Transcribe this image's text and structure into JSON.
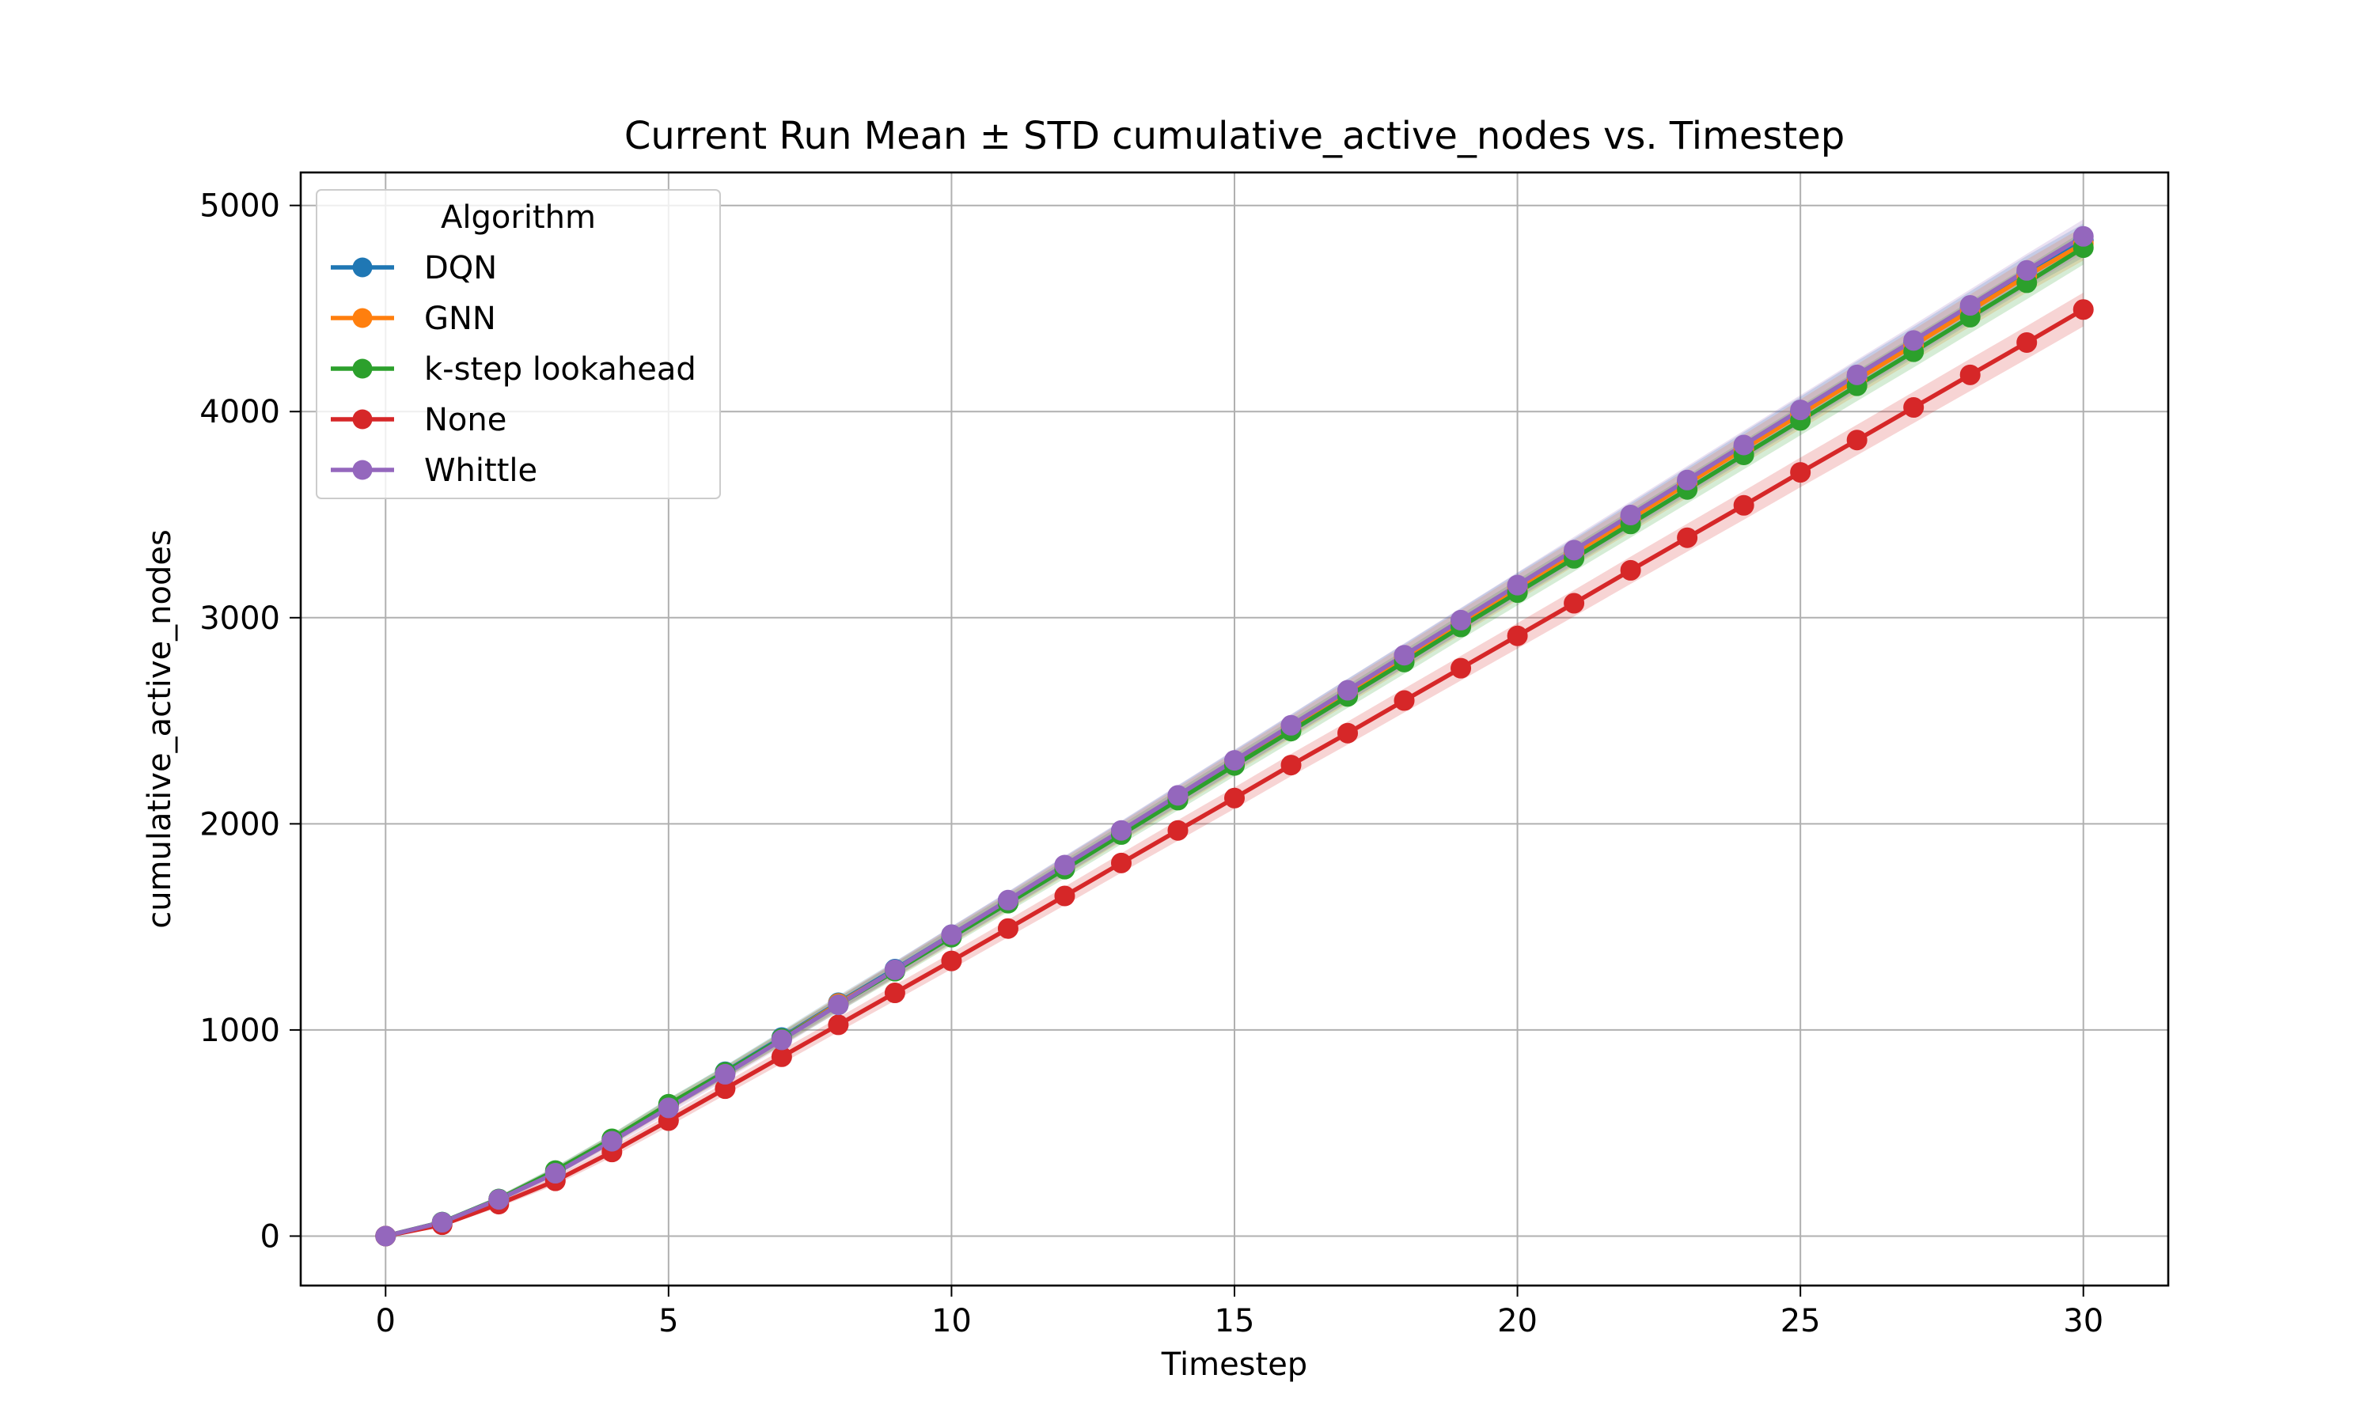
{
  "chart_data": {
    "type": "line",
    "title": "Current Run Mean ± STD cumulative_active_nodes vs. Timestep",
    "xlabel": "Timestep",
    "ylabel": "cumulative_active_nodes",
    "xlim": [
      -1.5,
      31.5
    ],
    "ylim": [
      -240,
      5160
    ],
    "xticks": [
      0,
      5,
      10,
      15,
      20,
      25,
      30
    ],
    "yticks": [
      0,
      1000,
      2000,
      3000,
      4000,
      5000
    ],
    "grid": true,
    "legend": {
      "title": "Algorithm",
      "placement": "top-left"
    },
    "x": [
      0,
      1,
      2,
      3,
      4,
      5,
      6,
      7,
      8,
      9,
      10,
      11,
      12,
      13,
      14,
      15,
      16,
      17,
      18,
      19,
      20,
      21,
      22,
      23,
      24,
      25,
      26,
      27,
      28,
      29,
      30
    ],
    "series": [
      {
        "name": "DQN",
        "color": "#1f77b4",
        "values": [
          0,
          68,
          180,
          315,
          470,
          638,
          797,
          963,
          1132,
          1295,
          1462,
          1628,
          1797,
          1965,
          2135,
          2305,
          2475,
          2647,
          2815,
          2985,
          3155,
          3320,
          3490,
          3660,
          3830,
          4000,
          4170,
          4335,
          4505,
          4675,
          4830
        ],
        "std": [
          0,
          10,
          15,
          20,
          25,
          28,
          30,
          33,
          35,
          38,
          40,
          42,
          45,
          47,
          50,
          52,
          54,
          56,
          58,
          60,
          62,
          64,
          66,
          68,
          70,
          72,
          74,
          76,
          78,
          80,
          82
        ]
      },
      {
        "name": "GNN",
        "color": "#ff7f0e",
        "values": [
          0,
          67,
          179,
          312,
          467,
          634,
          792,
          958,
          1128,
          1290,
          1457,
          1622,
          1792,
          1960,
          2128,
          2298,
          2468,
          2638,
          2807,
          2977,
          3146,
          3313,
          3480,
          3650,
          3818,
          3987,
          4155,
          4322,
          4490,
          4658,
          4815
        ],
        "std": [
          0,
          10,
          15,
          20,
          25,
          28,
          30,
          33,
          35,
          38,
          40,
          42,
          45,
          47,
          50,
          52,
          54,
          56,
          58,
          60,
          62,
          64,
          66,
          68,
          70,
          72,
          74,
          76,
          78,
          80,
          82
        ]
      },
      {
        "name": "k-step lookahead",
        "color": "#2ca02c",
        "values": [
          0,
          68,
          180,
          318,
          472,
          640,
          795,
          958,
          1122,
          1285,
          1450,
          1615,
          1780,
          1948,
          2115,
          2283,
          2450,
          2618,
          2785,
          2955,
          3122,
          3288,
          3455,
          3622,
          3790,
          3957,
          4125,
          4290,
          4458,
          4625,
          4795
        ],
        "std": [
          0,
          10,
          15,
          20,
          25,
          28,
          30,
          33,
          35,
          38,
          40,
          42,
          45,
          47,
          50,
          52,
          54,
          56,
          58,
          60,
          62,
          64,
          66,
          68,
          70,
          72,
          74,
          76,
          78,
          80,
          82
        ]
      },
      {
        "name": "None",
        "color": "#d62728",
        "values": [
          0,
          55,
          155,
          268,
          408,
          560,
          715,
          870,
          1025,
          1180,
          1335,
          1492,
          1650,
          1810,
          1968,
          2125,
          2285,
          2440,
          2598,
          2755,
          2912,
          3070,
          3230,
          3388,
          3545,
          3705,
          3862,
          4020,
          4178,
          4335,
          4495
        ],
        "std": [
          0,
          10,
          15,
          20,
          25,
          28,
          30,
          33,
          35,
          38,
          40,
          42,
          45,
          47,
          50,
          52,
          54,
          56,
          58,
          60,
          62,
          64,
          66,
          68,
          70,
          72,
          74,
          76,
          78,
          80,
          82
        ]
      },
      {
        "name": "Whittle",
        "color": "#9467bd",
        "values": [
          0,
          67,
          178,
          305,
          460,
          622,
          785,
          952,
          1122,
          1292,
          1462,
          1630,
          1800,
          1968,
          2138,
          2308,
          2478,
          2648,
          2818,
          2988,
          3158,
          3328,
          3498,
          3668,
          3838,
          4008,
          4178,
          4345,
          4515,
          4685,
          4850
        ],
        "std": [
          0,
          10,
          15,
          20,
          25,
          28,
          30,
          33,
          35,
          38,
          40,
          42,
          45,
          47,
          50,
          52,
          54,
          56,
          58,
          60,
          62,
          64,
          66,
          68,
          70,
          72,
          74,
          76,
          78,
          80,
          82
        ]
      }
    ]
  }
}
